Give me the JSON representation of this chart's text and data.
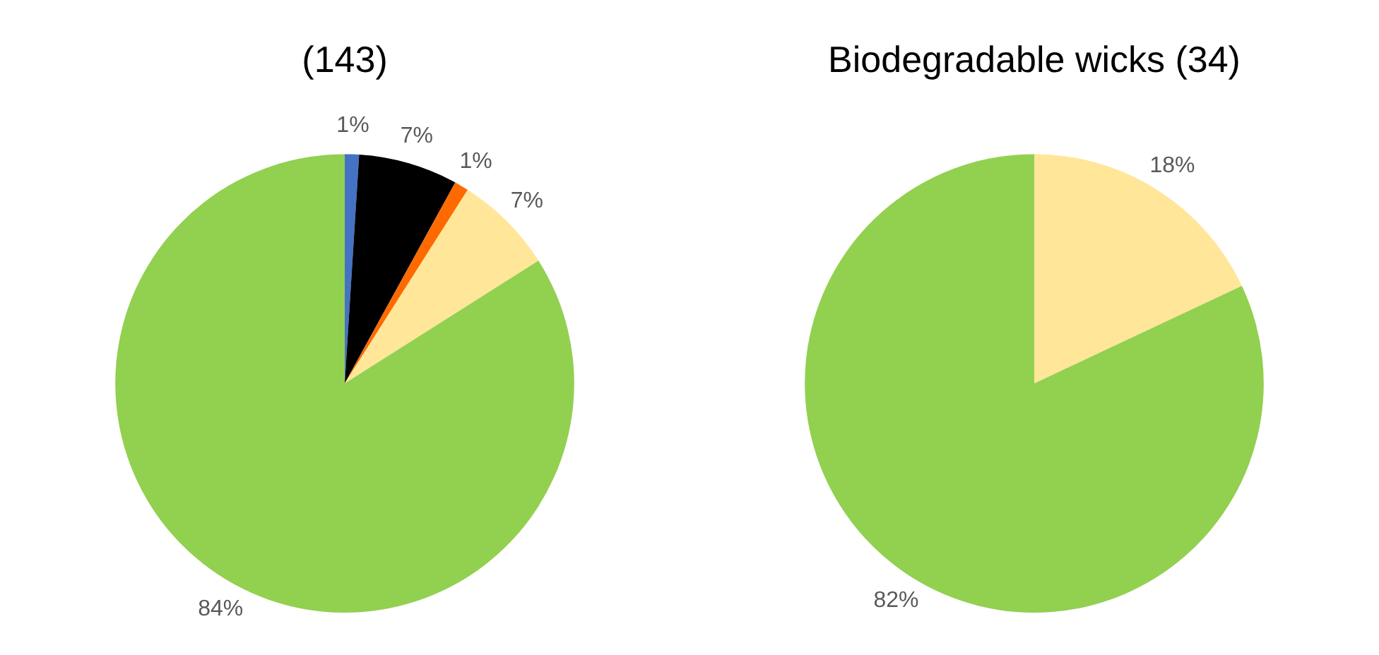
{
  "chart_data": [
    {
      "type": "pie",
      "title": "(143)",
      "categories": [
        null,
        null,
        null,
        null,
        null
      ],
      "values": [
        1,
        7,
        1,
        7,
        84
      ],
      "colors": [
        "#4472c4",
        "#000000",
        "#ff6a00",
        "#ffe699",
        "#92d050"
      ],
      "value_labels": [
        "1%",
        "7%",
        "1%",
        "7%",
        "84%"
      ],
      "legend": false
    },
    {
      "type": "pie",
      "title": "Biodegradable wicks (34)",
      "categories": [
        null,
        null
      ],
      "values": [
        18,
        82
      ],
      "colors": [
        "#ffe699",
        "#92d050"
      ],
      "value_labels": [
        "18%",
        "82%"
      ],
      "legend": false
    }
  ]
}
